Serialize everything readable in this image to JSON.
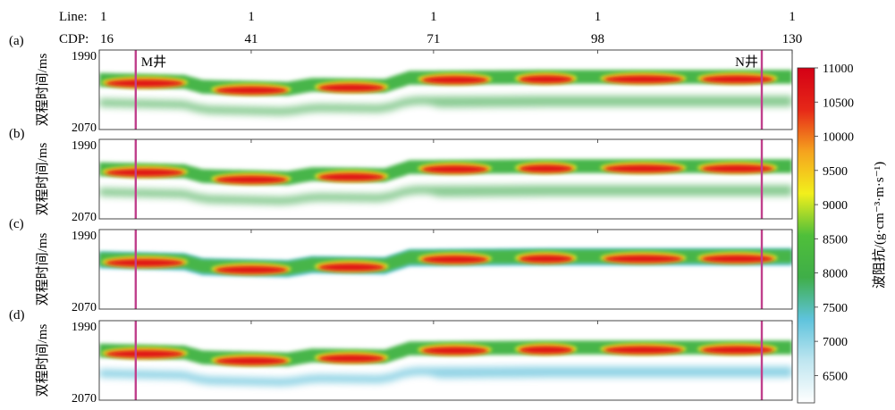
{
  "chart_data": {
    "type": "heatmap",
    "header": {
      "line_label": "Line:",
      "cdp_label": "CDP:",
      "line_values": [
        "1",
        "1",
        "1",
        "1",
        "1"
      ],
      "cdp_values": [
        "16",
        "41",
        "71",
        "98",
        "130"
      ],
      "cdp_positions": [
        16,
        41,
        71,
        98,
        130
      ]
    },
    "xlim": [
      16,
      130
    ],
    "ylim": [
      1990,
      2070
    ],
    "ylabel": "双程时间/ms",
    "yticks": [
      "1990",
      "2070"
    ],
    "wells": [
      {
        "label": "M井",
        "cdp": 22
      },
      {
        "label": "N井",
        "cdp": 125
      }
    ],
    "colorbar": {
      "label": "波阻抗/(g·cm⁻³·m·s⁻¹)",
      "min": 6100,
      "max": 11000,
      "ticks": [
        "11000",
        "10500",
        "10000",
        "9500",
        "9000",
        "8500",
        "8000",
        "7500",
        "7000",
        "6500"
      ],
      "tick_values": [
        11000,
        10500,
        10000,
        9500,
        9000,
        8500,
        8000,
        7500,
        7000,
        6500
      ],
      "colors": [
        "#ffffff",
        "#bfe6f0",
        "#5ec3dc",
        "#3fae48",
        "#4fbf3a",
        "#f2ef1c",
        "#f5a31e",
        "#e62818",
        "#d40015"
      ]
    },
    "panels": [
      {
        "label": "(a)",
        "lower_layer": "green"
      },
      {
        "label": "(b)",
        "lower_layer": "green"
      },
      {
        "label": "(c)",
        "lower_layer": "none"
      },
      {
        "label": "(d)",
        "lower_layer": "blue"
      }
    ],
    "horizon_time_ms": [
      {
        "cdp": 16,
        "t": 2020
      },
      {
        "cdp": 30,
        "t": 2022
      },
      {
        "cdp": 33,
        "t": 2027
      },
      {
        "cdp": 47,
        "t": 2029
      },
      {
        "cdp": 51,
        "t": 2025
      },
      {
        "cdp": 63,
        "t": 2026
      },
      {
        "cdp": 67,
        "t": 2018
      },
      {
        "cdp": 90,
        "t": 2017
      },
      {
        "cdp": 130,
        "t": 2017
      }
    ],
    "bright_spots": [
      {
        "cdp_range": [
          17,
          30
        ],
        "max_impedance": 11000
      },
      {
        "cdp_range": [
          35,
          47
        ],
        "max_impedance": 11000
      },
      {
        "cdp_range": [
          52,
          63
        ],
        "max_impedance": 10800
      },
      {
        "cdp_range": [
          69,
          80
        ],
        "max_impedance": 10800
      },
      {
        "cdp_range": [
          85,
          94
        ],
        "max_impedance": 10500
      },
      {
        "cdp_range": [
          99,
          112
        ],
        "max_impedance": 10500
      },
      {
        "cdp_range": [
          115,
          127
        ],
        "max_impedance": 10500
      }
    ]
  }
}
